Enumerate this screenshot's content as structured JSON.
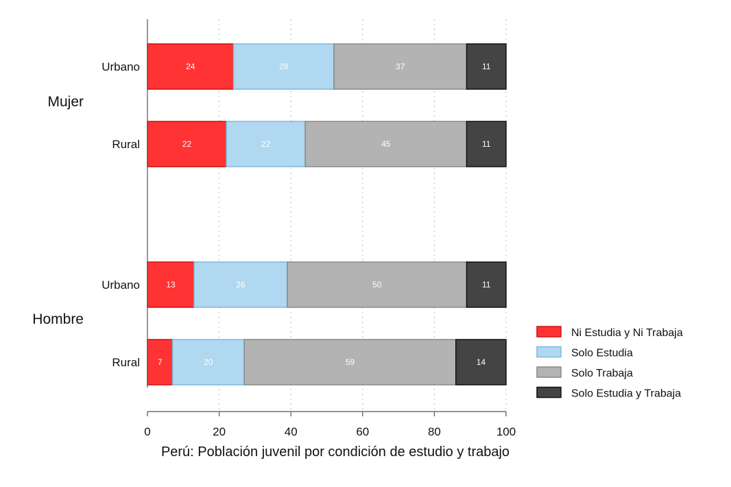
{
  "chart_data": {
    "type": "bar",
    "orientation": "horizontal",
    "stacked": true,
    "xlabel": "Perú: Población juvenil por condición de estudio y trabajo",
    "xlim": [
      0,
      100
    ],
    "xticks": [
      0,
      20,
      40,
      60,
      80,
      100
    ],
    "grid": true,
    "legend_position": "right",
    "groups": [
      {
        "name": "Mujer",
        "categories": [
          {
            "label": "Urbano",
            "values": [
              24,
              28,
              37,
              11
            ]
          },
          {
            "label": "Rural",
            "values": [
              22,
              22,
              45,
              11
            ]
          }
        ]
      },
      {
        "name": "Hombre",
        "categories": [
          {
            "label": "Urbano",
            "values": [
              13,
              26,
              50,
              11
            ]
          },
          {
            "label": "Rural",
            "values": [
              7,
              20,
              59,
              14
            ]
          }
        ]
      }
    ],
    "series": [
      {
        "name": "Ni Estudia y Ni Trabaja",
        "color": "#ff3333",
        "border": "#cc1111"
      },
      {
        "name": "Solo Estudia",
        "color": "#b0d8f0",
        "border": "#7fb8de"
      },
      {
        "name": "Solo Trabaja",
        "color": "#b3b3b3",
        "border": "#888888"
      },
      {
        "name": "Solo Estudia y Trabaja",
        "color": "#444444",
        "border": "#111111"
      }
    ]
  }
}
